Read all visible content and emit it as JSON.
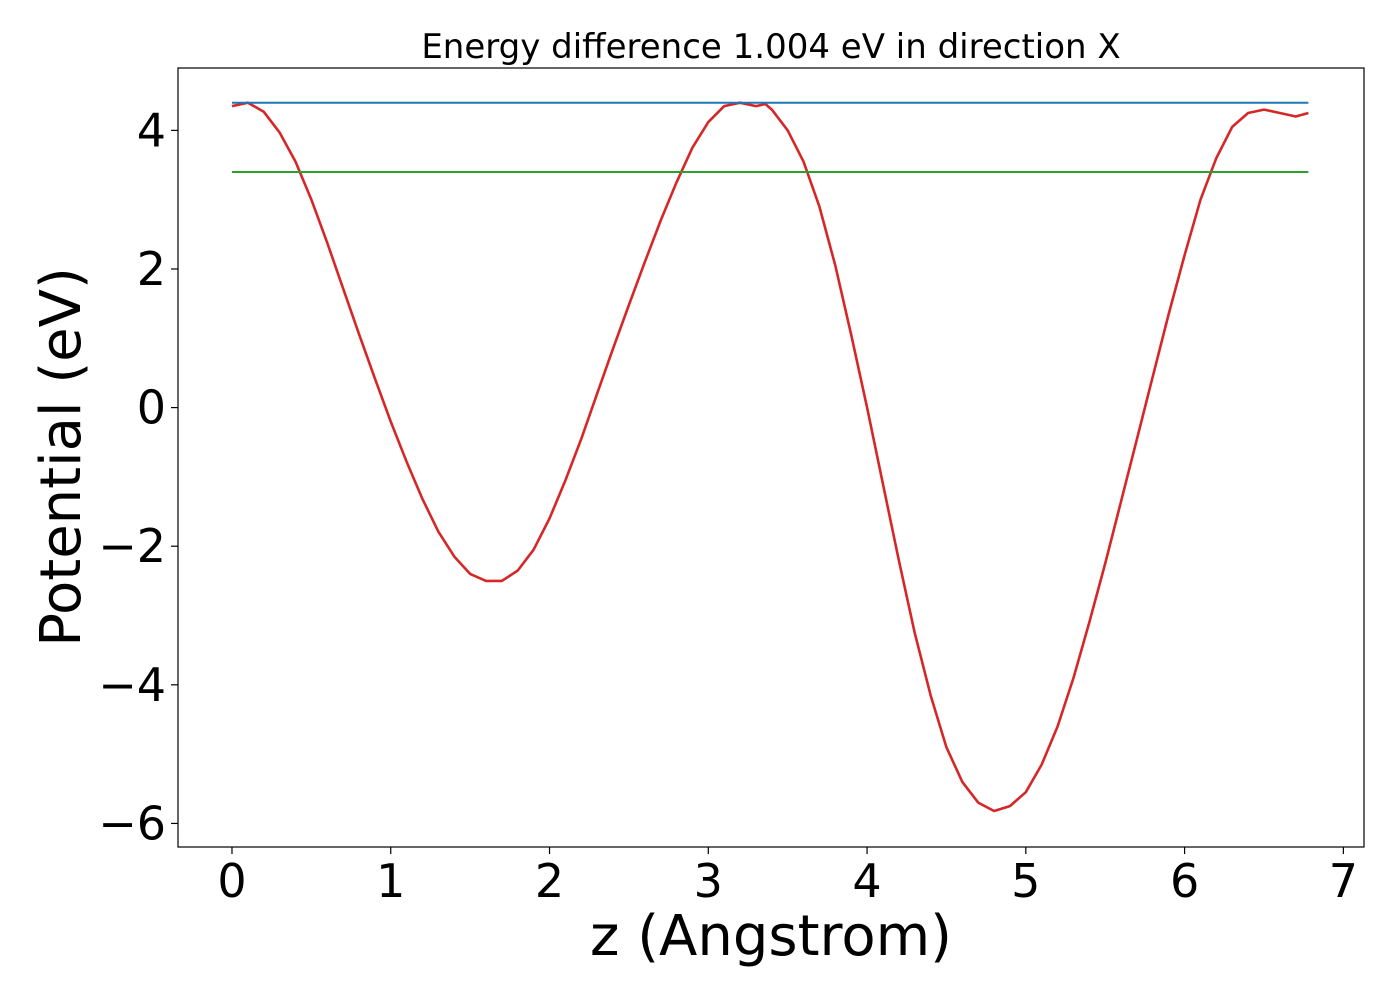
{
  "chart_data": {
    "type": "line",
    "title": "Energy difference 1.004 eV in direction X",
    "xlabel": "z (Angstrom)",
    "ylabel": "Potential (eV)",
    "xlim": [
      -0.34,
      7.13
    ],
    "ylim": [
      -6.34,
      4.9
    ],
    "xticks": [
      0,
      1,
      2,
      3,
      4,
      5,
      6,
      7
    ],
    "yticks": [
      -6,
      -4,
      -2,
      0,
      2,
      4
    ],
    "ytick_labels": [
      "−6",
      "−4",
      "−2",
      "0",
      "2",
      "4"
    ],
    "grid": false,
    "legend": "none",
    "series": [
      {
        "color": "#d62728",
        "x": [
          0.0,
          0.1,
          0.2,
          0.3,
          0.4,
          0.5,
          0.6,
          0.7,
          0.8,
          0.9,
          1.0,
          1.1,
          1.2,
          1.3,
          1.4,
          1.5,
          1.6,
          1.7,
          1.8,
          1.9,
          2.0,
          2.1,
          2.2,
          2.3,
          2.4,
          2.5,
          2.6,
          2.7,
          2.8,
          2.9,
          3.0,
          3.1,
          3.2,
          3.3,
          3.36,
          3.4,
          3.5,
          3.6,
          3.7,
          3.8,
          3.9,
          4.0,
          4.1,
          4.2,
          4.3,
          4.4,
          4.5,
          4.6,
          4.7,
          4.8,
          4.9,
          5.0,
          5.1,
          5.2,
          5.3,
          5.4,
          5.5,
          5.6,
          5.7,
          5.8,
          5.9,
          6.0,
          6.1,
          6.2,
          6.3,
          6.4,
          6.5,
          6.6,
          6.7,
          6.78
        ],
        "y": [
          4.35,
          4.4,
          4.27,
          3.97,
          3.55,
          3.0,
          2.38,
          1.72,
          1.06,
          0.42,
          -0.2,
          -0.78,
          -1.32,
          -1.79,
          -2.15,
          -2.4,
          -2.5,
          -2.5,
          -2.35,
          -2.05,
          -1.6,
          -1.05,
          -0.45,
          0.2,
          0.85,
          1.48,
          2.1,
          2.7,
          3.25,
          3.75,
          4.12,
          4.35,
          4.4,
          4.35,
          4.38,
          4.3,
          4.0,
          3.55,
          2.9,
          2.05,
          1.05,
          0.0,
          -1.1,
          -2.2,
          -3.25,
          -4.15,
          -4.9,
          -5.4,
          -5.7,
          -5.82,
          -5.75,
          -5.55,
          -5.15,
          -4.6,
          -3.9,
          -3.1,
          -2.25,
          -1.35,
          -0.45,
          0.45,
          1.35,
          2.2,
          3.0,
          3.6,
          4.05,
          4.25,
          4.3,
          4.25,
          4.2,
          4.25
        ]
      },
      {
        "color": "#1f77b4",
        "x": [
          0.0,
          6.78
        ],
        "y": [
          4.4,
          4.4
        ]
      },
      {
        "color": "#2ca02c",
        "x": [
          0.0,
          6.78
        ],
        "y": [
          3.4,
          3.4
        ]
      }
    ]
  }
}
